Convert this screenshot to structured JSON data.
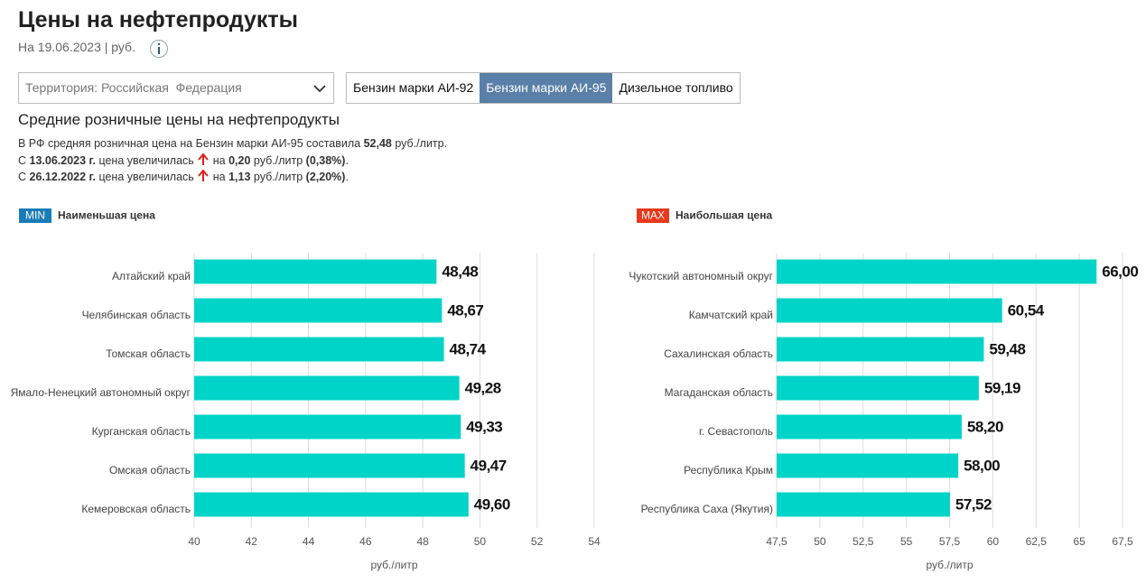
{
  "header": {
    "title": "Цены на нефтепродукты",
    "subtitle": "На 19.06.2023 | руб."
  },
  "controls": {
    "territory": "Территория: Российская  Федерация",
    "tabs": [
      "Бензин марки АИ-92",
      "Бензин марки АИ-95",
      "Дизельное топливо"
    ]
  },
  "section_title": "Средние розничные цены на нефтепродукты",
  "summary": [
    [
      "В РФ средняя розничная цена на Бензин марки АИ-95 составила ",
      "52,48",
      " руб./литр."
    ],
    [
      "С ",
      "13.06.2023 г.",
      " цена увеличилась",
      " на ",
      "0,20",
      " руб./литр ",
      "(0,38%)",
      "."
    ],
    [
      "С ",
      "26.12.2022 г.",
      " цена увеличилась",
      " на ",
      "1,13",
      " руб./литр ",
      "(2,20%)",
      "."
    ]
  ],
  "chart_data": [
    {
      "type": "hbar",
      "badge": "MIN",
      "badge_color": "#1a7cb8",
      "title": "Наименьшая цена",
      "categories": [
        "Алтайский край",
        "Челябинская область",
        "Томская область",
        "Ямало-Ненецкий автономный округ",
        "Курганская область",
        "Омская область",
        "Кемеровская область"
      ],
      "values": [
        48.48,
        48.67,
        48.74,
        49.28,
        49.33,
        49.47,
        49.6
      ],
      "value_labels": [
        "48,48",
        "48,67",
        "48,74",
        "49,28",
        "49,33",
        "49,47",
        "49,60"
      ],
      "color": "#00d4c8",
      "xlim": [
        40,
        54
      ],
      "xticks": [
        40,
        42,
        44,
        46,
        48,
        50,
        52,
        54
      ],
      "xlabel": "руб./литр",
      "grid": true
    },
    {
      "type": "hbar",
      "badge": "MAX",
      "badge_color": "#e8391d",
      "title": "Наибольшая цена",
      "categories": [
        "Чукотский автономный округ",
        "Камчатский край",
        "Сахалинская область",
        "Магаданская область",
        "г. Севастополь",
        "Республика Крым",
        "Республика Саха (Якутия)"
      ],
      "values": [
        66.0,
        60.54,
        59.48,
        59.19,
        58.2,
        58.0,
        57.52
      ],
      "value_labels": [
        "66,00",
        "60,54",
        "59,48",
        "59,19",
        "58,20",
        "58,00",
        "57,52"
      ],
      "color": "#00d4c8",
      "xlim": [
        47.5,
        67.5
      ],
      "xticks": [
        {
          "value": 47.5,
          "label": "47,5"
        },
        50,
        {
          "value": 52.5,
          "label": "52,5"
        },
        55,
        {
          "value": 57.5,
          "label": "57,5"
        },
        60,
        {
          "value": 62.5,
          "label": "62,5"
        },
        65,
        {
          "value": 67.5,
          "label": "67,5"
        }
      ],
      "xlabel": "руб./литр",
      "grid": true
    }
  ]
}
